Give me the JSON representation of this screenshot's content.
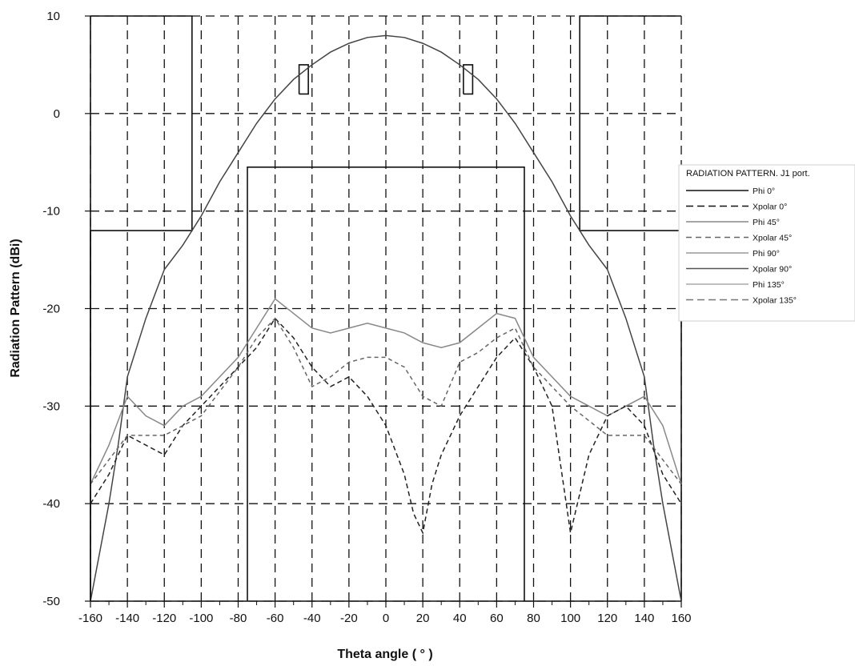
{
  "chart_data": {
    "type": "line",
    "title": "",
    "xlabel": "Theta angle ( ° )",
    "ylabel": "Radiation Pattern (dBi)",
    "xlim": [
      -160,
      160
    ],
    "ylim": [
      -50,
      10
    ],
    "x_ticks": [
      -160,
      -140,
      -120,
      -100,
      -80,
      -60,
      -40,
      -20,
      0,
      20,
      40,
      60,
      80,
      100,
      120,
      140,
      160
    ],
    "x_tick_labels": [
      "-160",
      "-140",
      "-120",
      "-100",
      "-80",
      "-60",
      "-40",
      "-20",
      "0",
      "20",
      "40",
      "60",
      "80",
      "100",
      "120",
      "140",
      "160"
    ],
    "y_ticks": [
      -50,
      -40,
      -30,
      -20,
      -10,
      0,
      10
    ],
    "y_tick_labels": [
      "-50",
      "-40",
      "-30",
      "-20",
      "-10",
      "0",
      "10"
    ],
    "grid": true,
    "legend": {
      "title": "RADIATION PATTERN. J1 port.",
      "placement": "right",
      "entries": [
        "Phi 0°",
        "Xpolar 0°",
        "Phi 45°",
        "Xpolar 45°",
        "Phi 90°",
        "Xpolar 90°",
        "Phi 135°",
        "Xpolar 135°"
      ]
    },
    "mask": [
      {
        "x": [
          -160,
          -160,
          -105,
          -105,
          -160
        ],
        "y": [
          -50,
          -12,
          -12,
          10,
          10
        ]
      },
      {
        "x": [
          160,
          160,
          105,
          105,
          160
        ],
        "y": [
          -50,
          -12,
          -12,
          10,
          10
        ]
      },
      {
        "x": [
          -75,
          -75,
          75,
          75
        ],
        "y": [
          -50,
          -5.5,
          -5.5,
          -50
        ]
      },
      {
        "x": [
          -47,
          -42,
          -42,
          -47,
          -47
        ],
        "y": [
          2,
          2,
          5,
          5,
          2
        ]
      },
      {
        "x": [
          42,
          47,
          47,
          42,
          42
        ],
        "y": [
          2,
          2,
          5,
          5,
          2
        ]
      }
    ],
    "series": [
      {
        "color": "#444444",
        "dash": "solid",
        "x": [
          -160,
          -150,
          -145,
          -140,
          -130,
          -120,
          -110,
          -100,
          -90,
          -80,
          -70,
          -60,
          -50,
          -40,
          -30,
          -20,
          -10,
          0,
          10,
          20,
          30,
          40,
          50,
          60,
          70,
          80,
          90,
          100,
          110,
          120,
          130,
          140,
          145,
          150,
          160
        ],
        "y": [
          -50,
          -40,
          -34,
          -27,
          -21,
          -16,
          -13.5,
          -10.5,
          -7,
          -4,
          -1,
          1.5,
          3.5,
          5,
          6.3,
          7.2,
          7.8,
          8,
          7.8,
          7.2,
          6.3,
          5,
          3.5,
          1.5,
          -1,
          -4,
          -7,
          -10.5,
          -13.5,
          -16,
          -21,
          -27,
          -34,
          -40,
          -50
        ]
      },
      {
        "color": "#888888",
        "dash": "solid",
        "x": [
          -160,
          -150,
          -140,
          -130,
          -120,
          -110,
          -100,
          -90,
          -80,
          -70,
          -60,
          -50,
          -40,
          -30,
          -20,
          -10,
          0,
          10,
          20,
          30,
          40,
          50,
          60,
          70,
          80,
          90,
          100,
          110,
          120,
          130,
          140,
          150,
          160
        ],
        "y": [
          -38,
          -34,
          -29,
          -31,
          -32,
          -30,
          -29,
          -27,
          -25,
          -22,
          -19,
          -20.5,
          -22,
          -22.5,
          -22,
          -21.5,
          -22,
          -22.5,
          -23.5,
          -24,
          -23.5,
          -22,
          -20.5,
          -21,
          -25,
          -27,
          -29,
          -30,
          -31,
          -30,
          -29,
          -32,
          -38
        ]
      },
      {
        "color": "#222222",
        "dash": "6,4",
        "x": [
          -160,
          -150,
          -140,
          -130,
          -120,
          -110,
          -100,
          -90,
          -80,
          -70,
          -60,
          -50,
          -40,
          -30,
          -20,
          -10,
          0,
          10,
          15,
          20,
          25,
          30,
          40,
          50,
          60,
          70,
          80,
          90,
          100,
          110,
          120,
          130,
          140,
          150,
          160
        ],
        "y": [
          -40,
          -37,
          -33,
          -34,
          -35,
          -32,
          -30,
          -28,
          -26,
          -24,
          -21,
          -23,
          -26,
          -28,
          -27,
          -29,
          -32,
          -37,
          -41,
          -43,
          -38,
          -35,
          -31,
          -28,
          -25,
          -23,
          -26,
          -30,
          -43,
          -35,
          -31,
          -30,
          -32,
          -37,
          -40
        ]
      },
      {
        "color": "#666666",
        "dash": "5,4",
        "x": [
          -160,
          -140,
          -120,
          -100,
          -80,
          -70,
          -60,
          -50,
          -40,
          -30,
          -20,
          -10,
          0,
          10,
          20,
          30,
          40,
          50,
          60,
          70,
          80,
          100,
          120,
          140,
          160
        ],
        "y": [
          -38,
          -33,
          -33,
          -31,
          -26,
          -23,
          -21,
          -24,
          -28,
          -27,
          -25.5,
          -25,
          -25,
          -26,
          -29,
          -30,
          -25.5,
          -24.5,
          -23,
          -22,
          -26,
          -30,
          -33,
          -33,
          -38
        ]
      }
    ]
  }
}
